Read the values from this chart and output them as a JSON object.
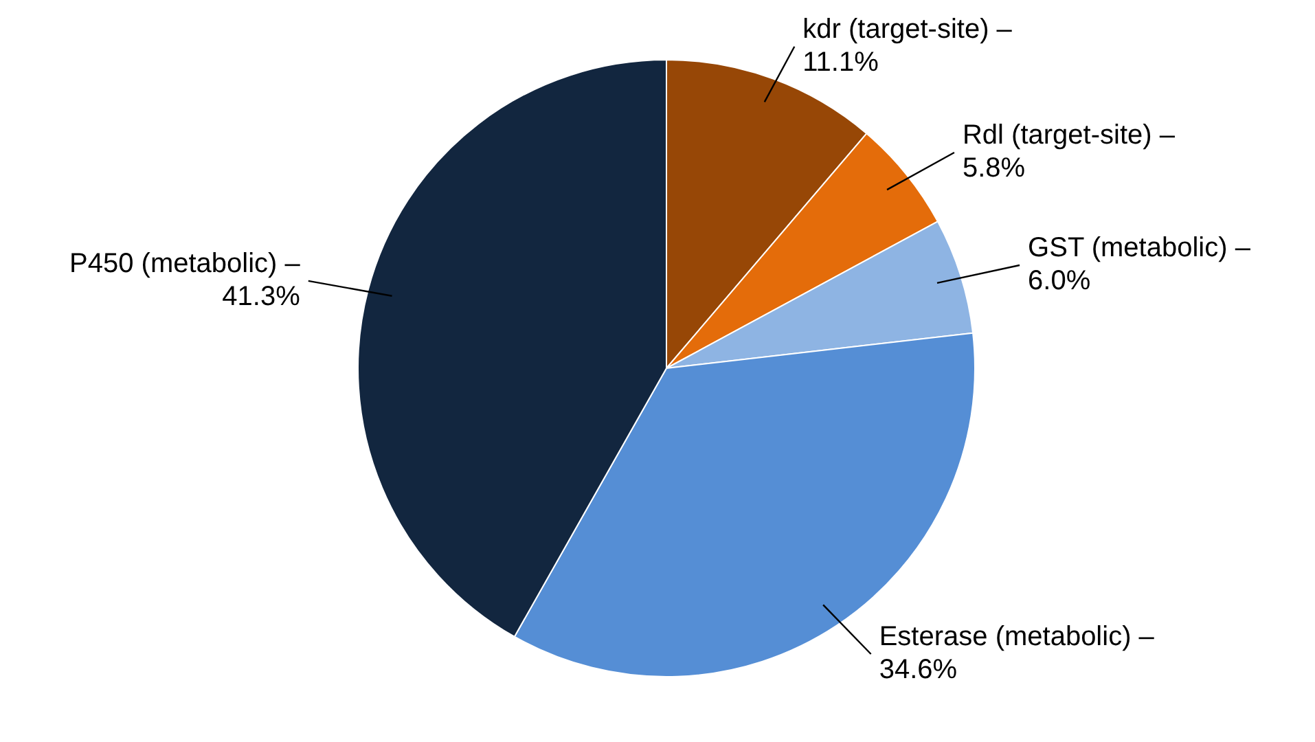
{
  "chart_data": {
    "type": "pie",
    "categories": [
      "kdr (target-site) –",
      "Rdl (target-site) –",
      "GST (metabolic) –",
      "Esterase (metabolic) –",
      "P450 (metabolic) –"
    ],
    "values": [
      11.1,
      5.8,
      6.0,
      34.6,
      41.3
    ],
    "value_labels": [
      "11.1%",
      "5.8%",
      "6.0%",
      "34.6%",
      "41.3%"
    ],
    "colors": [
      "#974706",
      "#e46c0a",
      "#8eb4e3",
      "#558ed5",
      "#12263f"
    ],
    "legend": false
  }
}
